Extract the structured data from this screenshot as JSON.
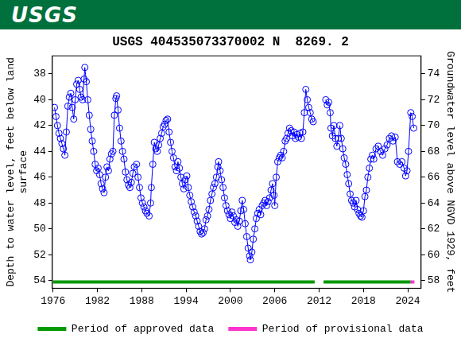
{
  "header": {
    "logo": "USGS"
  },
  "chart_data": {
    "type": "scatter",
    "title": "USGS 404535073370002 N  8269. 2",
    "ylabel": [
      "Depth to water level, feet below land",
      "surface"
    ],
    "y2label": "Groundwater level above NGVD 1929, feet",
    "color": "#0000ff",
    "marker": "circle",
    "line_style": "solid",
    "grid": false,
    "legend": "bottom",
    "xlim": [
      1975.9,
      2025.8
    ],
    "xticks": [
      1976,
      1982,
      1988,
      1994,
      2000,
      2006,
      2012,
      2018,
      2024
    ],
    "ylim": [
      54.6,
      36.6
    ],
    "yticks": [
      38,
      40,
      42,
      44,
      46,
      48,
      50,
      52,
      54
    ],
    "y2lim": [
      57.4,
      75.4
    ],
    "y2ticks": [
      58,
      60,
      62,
      64,
      66,
      68,
      70,
      72,
      74
    ],
    "x": [
      1976.2,
      1976.4,
      1976.6,
      1976.8,
      1977.0,
      1977.2,
      1977.4,
      1977.6,
      1977.8,
      1978.0,
      1978.2,
      1978.4,
      1978.6,
      1978.8,
      1979.0,
      1979.2,
      1979.4,
      1979.6,
      1979.8,
      1980.0,
      1980.2,
      1980.3,
      1980.5,
      1980.7,
      1980.9,
      1981.1,
      1981.3,
      1981.5,
      1981.7,
      1981.9,
      1982.1,
      1982.3,
      1982.5,
      1982.7,
      1982.9,
      1983.1,
      1983.3,
      1983.5,
      1983.7,
      1983.9,
      1984.1,
      1984.3,
      1984.5,
      1984.6,
      1984.8,
      1985.0,
      1985.2,
      1985.4,
      1985.6,
      1985.8,
      1986.0,
      1986.2,
      1986.4,
      1986.6,
      1986.8,
      1987.0,
      1987.3,
      1987.5,
      1987.7,
      1987.9,
      1988.1,
      1988.3,
      1988.5,
      1988.7,
      1989.0,
      1989.2,
      1989.3,
      1989.5,
      1989.7,
      1989.9,
      1990.1,
      1990.3,
      1990.5,
      1990.7,
      1990.9,
      1991.1,
      1991.3,
      1991.5,
      1991.7,
      1991.9,
      1992.1,
      1992.3,
      1992.5,
      1992.7,
      1992.9,
      1993.1,
      1993.3,
      1993.5,
      1993.7,
      1993.9,
      1994.1,
      1994.3,
      1994.5,
      1994.7,
      1994.9,
      1995.1,
      1995.3,
      1995.5,
      1995.7,
      1995.9,
      1996.1,
      1996.3,
      1996.5,
      1996.7,
      1996.9,
      1997.1,
      1997.3,
      1997.5,
      1997.7,
      1997.9,
      1998.1,
      1998.3,
      1998.4,
      1998.6,
      1998.8,
      1999.0,
      1999.2,
      1999.4,
      1999.6,
      1999.8,
      2000.0,
      2000.2,
      2000.4,
      2000.6,
      2000.8,
      2001.0,
      2001.2,
      2001.4,
      2001.6,
      2001.8,
      2002.0,
      2002.2,
      2002.4,
      2002.6,
      2002.7,
      2002.9,
      2003.1,
      2003.3,
      2003.5,
      2003.7,
      2003.9,
      2004.1,
      2004.3,
      2004.5,
      2004.7,
      2004.9,
      2005.1,
      2005.3,
      2005.5,
      2005.7,
      2005.9,
      2006.0,
      2006.2,
      2006.4,
      2006.6,
      2006.8,
      2007.0,
      2007.2,
      2007.4,
      2007.6,
      2007.8,
      2008.0,
      2008.2,
      2008.4,
      2008.6,
      2008.8,
      2009.0,
      2009.2,
      2009.4,
      2009.6,
      2009.8,
      2010.0,
      2010.2,
      2010.4,
      2010.6,
      2010.8,
      2011.0,
      2011.2,
      2012.0,
      2012.9,
      2013.1,
      2013.3,
      2013.5,
      2013.6,
      2013.8,
      2014.0,
      2014.2,
      2014.4,
      2014.6,
      2014.8,
      2015.0,
      2015.2,
      2015.4,
      2015.6,
      2015.8,
      2016.0,
      2016.2,
      2016.4,
      2016.6,
      2016.8,
      2017.0,
      2017.2,
      2017.4,
      2017.6,
      2017.8,
      2018.0,
      2018.2,
      2018.4,
      2018.6,
      2018.8,
      2019.0,
      2019.2,
      2019.4,
      2019.7,
      2020.0,
      2020.3,
      2020.6,
      2020.9,
      2021.2,
      2021.5,
      2021.8,
      2022.0,
      2022.3,
      2022.6,
      2022.9,
      2023.2,
      2023.5,
      2023.7,
      2023.9,
      2024.1,
      2024.4,
      2024.6,
      2024.8
    ],
    "values": [
      40.6,
      41.3,
      42.0,
      42.6,
      43.0,
      43.4,
      43.8,
      44.3,
      42.5,
      40.5,
      39.8,
      39.5,
      40.6,
      41.5,
      40.0,
      38.8,
      38.5,
      39.2,
      39.8,
      40.0,
      38.4,
      37.5,
      38.6,
      40.0,
      41.2,
      42.3,
      43.2,
      44.0,
      45.0,
      45.5,
      45.3,
      45.8,
      46.5,
      46.9,
      47.2,
      46.0,
      45.2,
      45.5,
      44.6,
      44.2,
      44.0,
      41.2,
      39.9,
      39.7,
      40.8,
      42.2,
      43.2,
      44.0,
      44.6,
      45.6,
      46.2,
      46.6,
      46.8,
      46.4,
      45.7,
      45.2,
      45.0,
      46.0,
      46.8,
      47.6,
      48.0,
      48.3,
      48.6,
      48.8,
      49.0,
      48.0,
      46.8,
      45.0,
      43.3,
      43.8,
      44.0,
      43.5,
      43.0,
      42.6,
      42.1,
      41.9,
      41.6,
      41.5,
      42.5,
      43.3,
      44.0,
      44.5,
      45.2,
      45.5,
      44.8,
      45.3,
      46.0,
      46.5,
      46.9,
      46.2,
      45.9,
      46.8,
      47.4,
      47.9,
      48.3,
      48.7,
      49.0,
      49.4,
      49.8,
      50.2,
      50.4,
      50.3,
      50.0,
      49.3,
      49.0,
      48.5,
      47.8,
      47.3,
      46.8,
      46.5,
      46.0,
      45.2,
      44.8,
      45.5,
      46.2,
      46.8,
      47.6,
      48.2,
      48.6,
      48.9,
      49.2,
      48.7,
      49.0,
      49.5,
      49.3,
      49.8,
      49.4,
      48.6,
      47.8,
      48.5,
      49.6,
      50.6,
      51.5,
      52.1,
      52.4,
      51.8,
      50.8,
      50.0,
      49.2,
      48.8,
      48.5,
      48.9,
      48.2,
      48.0,
      47.8,
      48.2,
      47.9,
      47.6,
      47.0,
      46.5,
      47.4,
      48.2,
      46.0,
      44.8,
      44.5,
      44.3,
      44.5,
      44.0,
      43.2,
      43.0,
      42.6,
      42.2,
      42.4,
      42.8,
      42.5,
      43.0,
      42.7,
      42.9,
      42.6,
      43.0,
      42.5,
      41.0,
      39.2,
      40.0,
      40.6,
      41.0,
      41.5,
      41.7,
      null,
      40.0,
      40.4,
      40.2,
      41.0,
      42.2,
      42.8,
      42.0,
      43.0,
      43.6,
      43.0,
      42.0,
      43.0,
      43.8,
      44.5,
      45.0,
      45.8,
      46.5,
      47.3,
      47.8,
      48.0,
      48.3,
      47.8,
      48.5,
      48.8,
      49.0,
      49.1,
      48.6,
      47.5,
      47.0,
      46.0,
      45.3,
      44.6,
      44.3,
      44.6,
      43.8,
      43.6,
      44.0,
      44.3,
      43.8,
      43.5,
      43.0,
      42.8,
      43.2,
      42.9,
      44.8,
      45.0,
      44.8,
      45.3,
      45.9,
      45.5,
      44.0,
      41.0,
      41.3,
      42.2
    ],
    "periods": [
      {
        "name": "Period of approved data",
        "color": "#009900",
        "ranges": [
          [
            1976.0,
            2011.4
          ],
          [
            2012.6,
            2024.4
          ]
        ]
      },
      {
        "name": "Period of provisional data",
        "color": "#ff33cc",
        "ranges": [
          [
            2024.4,
            2024.9
          ]
        ]
      }
    ]
  }
}
